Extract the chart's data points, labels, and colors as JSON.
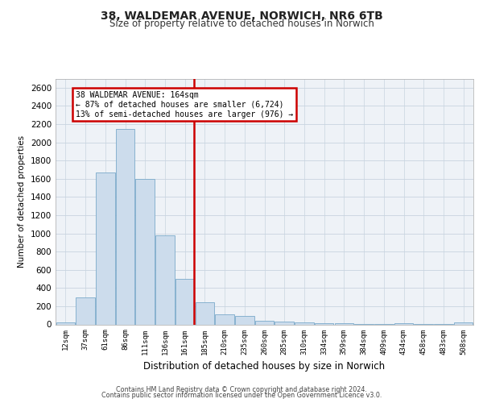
{
  "title1": "38, WALDEMAR AVENUE, NORWICH, NR6 6TB",
  "title2": "Size of property relative to detached houses in Norwich",
  "xlabel": "Distribution of detached houses by size in Norwich",
  "ylabel": "Number of detached properties",
  "footnote1": "Contains HM Land Registry data © Crown copyright and database right 2024.",
  "footnote2": "Contains public sector information licensed under the Open Government Licence v3.0.",
  "property_label": "38 WALDEMAR AVENUE: 164sqm",
  "annotation_line1": "← 87% of detached houses are smaller (6,724)",
  "annotation_line2": "13% of semi-detached houses are larger (976) →",
  "bar_color": "#ccdcec",
  "bar_edge_color": "#7aaaca",
  "vline_color": "#cc0000",
  "annotation_box_edge": "#cc0000",
  "grid_color": "#c8d4e0",
  "background_color": "#eef2f7",
  "categories": [
    "12sqm",
    "37sqm",
    "61sqm",
    "86sqm",
    "111sqm",
    "136sqm",
    "161sqm",
    "185sqm",
    "210sqm",
    "235sqm",
    "260sqm",
    "285sqm",
    "310sqm",
    "334sqm",
    "359sqm",
    "384sqm",
    "409sqm",
    "434sqm",
    "458sqm",
    "483sqm",
    "508sqm"
  ],
  "values": [
    25,
    300,
    1670,
    2150,
    1600,
    975,
    500,
    245,
    115,
    95,
    40,
    30,
    20,
    10,
    10,
    5,
    5,
    10,
    5,
    5,
    20
  ],
  "ylim": [
    0,
    2700
  ],
  "yticks": [
    0,
    200,
    400,
    600,
    800,
    1000,
    1200,
    1400,
    1600,
    1800,
    2000,
    2200,
    2400,
    2600
  ],
  "vline_x_index": 6
}
